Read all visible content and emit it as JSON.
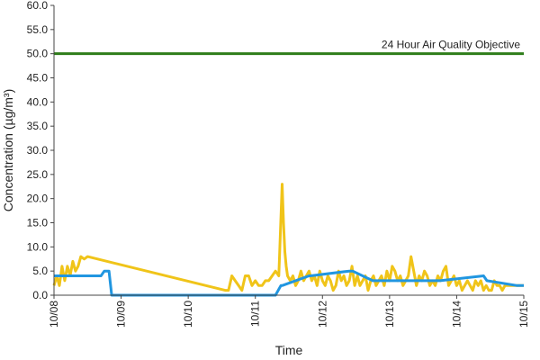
{
  "chart_data": {
    "type": "line",
    "title": "",
    "xlabel": "Time",
    "ylabel": "Concentration (µg/m³)",
    "xlim": [
      "10/08",
      "10/15"
    ],
    "ylim": [
      0,
      60
    ],
    "x_ticks": [
      "10/08",
      "10/09",
      "10/10",
      "10/11",
      "10/12",
      "10/13",
      "10/14",
      "10/15"
    ],
    "y_ticks": [
      "0.0",
      "5.0",
      "10.0",
      "15.0",
      "20.0",
      "25.0",
      "30.0",
      "35.0",
      "40.0",
      "45.0",
      "50.0",
      "55.0",
      "60.0"
    ],
    "grid": false,
    "legend": "none",
    "reference_line": {
      "value": 50,
      "label": "24 Hour Air Quality Objective",
      "color": "#2e7d1a"
    },
    "series": [
      {
        "color": "#f0c419",
        "x": [
          0.0,
          0.04,
          0.08,
          0.12,
          0.16,
          0.2,
          0.24,
          0.28,
          0.32,
          0.36,
          0.4,
          0.45,
          0.5,
          2.55,
          2.6,
          2.65,
          2.7,
          2.75,
          2.8,
          2.85,
          2.9,
          2.95,
          3.0,
          3.05,
          3.1,
          3.15,
          3.2,
          3.25,
          3.3,
          3.35,
          3.4,
          3.42,
          3.44,
          3.46,
          3.48,
          3.52,
          3.56,
          3.6,
          3.64,
          3.68,
          3.72,
          3.76,
          3.8,
          3.84,
          3.88,
          3.92,
          3.96,
          4.0,
          4.04,
          4.08,
          4.12,
          4.16,
          4.2,
          4.24,
          4.28,
          4.32,
          4.36,
          4.4,
          4.44,
          4.48,
          4.52,
          4.56,
          4.6,
          4.64,
          4.68,
          4.72,
          4.76,
          4.8,
          4.84,
          4.88,
          4.92,
          4.96,
          5.0,
          5.04,
          5.08,
          5.12,
          5.16,
          5.2,
          5.24,
          5.28,
          5.32,
          5.36,
          5.4,
          5.44,
          5.48,
          5.52,
          5.56,
          5.6,
          5.64,
          5.68,
          5.72,
          5.76,
          5.8,
          5.84,
          5.88,
          5.92,
          5.96,
          6.0,
          6.04,
          6.08,
          6.12,
          6.16,
          6.2,
          6.24,
          6.28,
          6.32,
          6.36,
          6.4,
          6.44,
          6.48,
          6.52,
          6.56,
          6.6,
          6.64,
          6.68,
          6.72,
          6.76,
          6.8,
          6.84,
          6.88,
          6.92,
          6.96,
          7.0
        ],
        "values": [
          2,
          4,
          2,
          6,
          3,
          6,
          4,
          7,
          5,
          6,
          8,
          7.5,
          8,
          1,
          1,
          4,
          3,
          2,
          1,
          4,
          4,
          2,
          3,
          2,
          2,
          3,
          3,
          4,
          5,
          4,
          23,
          15,
          9,
          6,
          4,
          3,
          4,
          2,
          3,
          5,
          3,
          4,
          5,
          3,
          4,
          2,
          5,
          3,
          2,
          4,
          3,
          1,
          2,
          5,
          3,
          4,
          2,
          3,
          6,
          2,
          4,
          2,
          3,
          4,
          1,
          3,
          4,
          2,
          3,
          4,
          2,
          5,
          3,
          6,
          5,
          3,
          4,
          2,
          3,
          4,
          8,
          5,
          2,
          4,
          3,
          5,
          4,
          2,
          3,
          2,
          4,
          3,
          5,
          6,
          2,
          3,
          4,
          2,
          3,
          1,
          2,
          3,
          2,
          1,
          3,
          2,
          3,
          1,
          2,
          1,
          1,
          3,
          2,
          2,
          1,
          2,
          2,
          2,
          2,
          2,
          2,
          2,
          2
        ]
      },
      {
        "color": "#2196e0",
        "x": [
          0.0,
          0.7,
          0.75,
          0.82,
          0.86,
          3.3,
          3.38,
          3.4,
          3.8,
          3.82,
          4.4,
          4.45,
          4.75,
          4.8,
          5.7,
          5.75,
          6.4,
          6.45,
          6.9,
          7.0
        ],
        "values": [
          4,
          4,
          5,
          5,
          0,
          0,
          2,
          2,
          4,
          4,
          5,
          5,
          3,
          3,
          3,
          3,
          4,
          3,
          2,
          2
        ]
      }
    ]
  }
}
